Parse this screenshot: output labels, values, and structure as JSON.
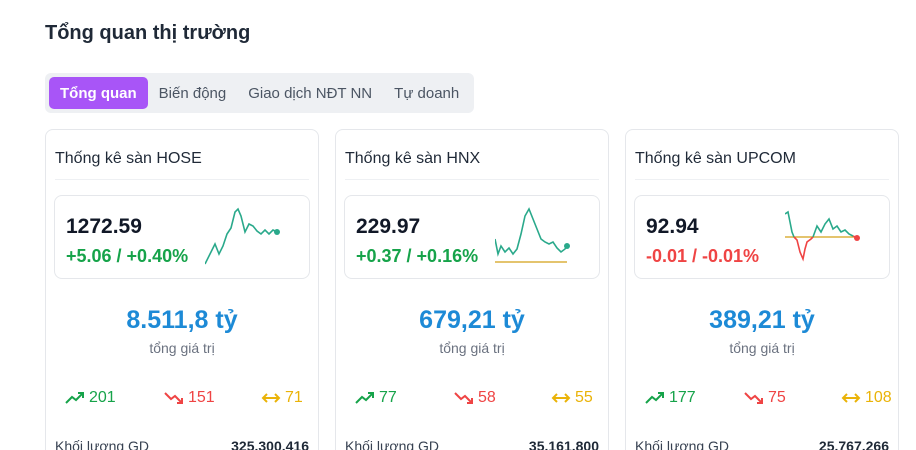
{
  "page_title": "Tổng quan thị trường",
  "tabs": [
    {
      "label": "Tổng quan",
      "active": true
    },
    {
      "label": "Biến động",
      "active": false
    },
    {
      "label": "Giao dịch NĐT NN",
      "active": false
    },
    {
      "label": "Tự doanh",
      "active": false
    }
  ],
  "colors": {
    "accent": "#a855f7",
    "up": "#16a34a",
    "down": "#ef4444",
    "flat": "#eab308",
    "value": "#1d8ad6"
  },
  "cards": [
    {
      "title": "Thống kê sàn HOSE",
      "index": "1272.59",
      "change": "+5.06 / +0.40%",
      "trend": "up",
      "value": "8.511,8 tỷ",
      "value_label": "tổng giá trị",
      "advancers": "201",
      "decliners": "151",
      "unchanged": "71",
      "volume_label": "Khối lượng GD",
      "volume": "325.300.416"
    },
    {
      "title": "Thống kê sàn HNX",
      "index": "229.97",
      "change": "+0.37 / +0.16%",
      "trend": "up",
      "value": "679,21 tỷ",
      "value_label": "tổng giá trị",
      "advancers": "77",
      "decliners": "58",
      "unchanged": "55",
      "volume_label": "Khối lượng GD",
      "volume": "35.161.800"
    },
    {
      "title": "Thống kê sàn UPCOM",
      "index": "92.94",
      "change": "-0.01 / -0.01%",
      "trend": "down",
      "value": "389,21 tỷ",
      "value_label": "tổng giá trị",
      "advancers": "177",
      "decliners": "75",
      "unchanged": "108",
      "volume_label": "Khối lượng GD",
      "volume": "25.767.266"
    }
  ]
}
